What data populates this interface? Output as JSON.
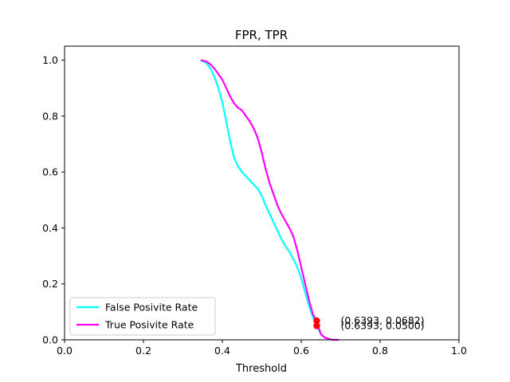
{
  "chart_data": {
    "type": "line",
    "title": "FPR, TPR",
    "xlabel": "Threshold",
    "ylabel": "",
    "xlim": [
      0.0,
      1.0
    ],
    "ylim": [
      0.0,
      1.05
    ],
    "xticks": [
      "0.0",
      "0.2",
      "0.4",
      "0.6",
      "0.8",
      "1.0"
    ],
    "yticks": [
      "0.0",
      "0.2",
      "0.4",
      "0.6",
      "0.8",
      "1.0"
    ],
    "grid": false,
    "legend_position": "lower-left",
    "series": [
      {
        "name": "False Posivite Rate",
        "color": "#00ffff",
        "points": [
          [
            0.345,
            1.0
          ],
          [
            0.36,
            0.99
          ],
          [
            0.37,
            0.97
          ],
          [
            0.38,
            0.94
          ],
          [
            0.39,
            0.9
          ],
          [
            0.4,
            0.85
          ],
          [
            0.41,
            0.78
          ],
          [
            0.42,
            0.71
          ],
          [
            0.43,
            0.65
          ],
          [
            0.44,
            0.62
          ],
          [
            0.45,
            0.6
          ],
          [
            0.46,
            0.585
          ],
          [
            0.47,
            0.57
          ],
          [
            0.48,
            0.555
          ],
          [
            0.49,
            0.54
          ],
          [
            0.5,
            0.515
          ],
          [
            0.51,
            0.48
          ],
          [
            0.52,
            0.45
          ],
          [
            0.53,
            0.42
          ],
          [
            0.54,
            0.39
          ],
          [
            0.55,
            0.36
          ],
          [
            0.56,
            0.335
          ],
          [
            0.57,
            0.315
          ],
          [
            0.58,
            0.29
          ],
          [
            0.59,
            0.26
          ],
          [
            0.6,
            0.22
          ],
          [
            0.61,
            0.17
          ],
          [
            0.62,
            0.12
          ],
          [
            0.63,
            0.08
          ],
          [
            0.6393,
            0.05
          ],
          [
            0.645,
            0.035
          ],
          [
            0.65,
            0.02
          ],
          [
            0.66,
            0.008
          ],
          [
            0.67,
            0.003
          ],
          [
            0.68,
            0.0
          ],
          [
            0.695,
            0.0
          ]
        ]
      },
      {
        "name": "True Posivite Rate",
        "color": "#ff00ff",
        "points": [
          [
            0.345,
            1.0
          ],
          [
            0.36,
            0.995
          ],
          [
            0.37,
            0.985
          ],
          [
            0.38,
            0.97
          ],
          [
            0.39,
            0.95
          ],
          [
            0.4,
            0.93
          ],
          [
            0.41,
            0.9
          ],
          [
            0.42,
            0.87
          ],
          [
            0.43,
            0.845
          ],
          [
            0.44,
            0.83
          ],
          [
            0.45,
            0.82
          ],
          [
            0.46,
            0.8
          ],
          [
            0.47,
            0.78
          ],
          [
            0.48,
            0.755
          ],
          [
            0.49,
            0.72
          ],
          [
            0.5,
            0.67
          ],
          [
            0.51,
            0.61
          ],
          [
            0.52,
            0.56
          ],
          [
            0.53,
            0.52
          ],
          [
            0.54,
            0.48
          ],
          [
            0.55,
            0.45
          ],
          [
            0.56,
            0.425
          ],
          [
            0.57,
            0.4
          ],
          [
            0.58,
            0.37
          ],
          [
            0.59,
            0.32
          ],
          [
            0.6,
            0.26
          ],
          [
            0.61,
            0.2
          ],
          [
            0.62,
            0.14
          ],
          [
            0.63,
            0.09
          ],
          [
            0.6393,
            0.0682
          ],
          [
            0.645,
            0.04
          ],
          [
            0.65,
            0.02
          ],
          [
            0.66,
            0.008
          ],
          [
            0.67,
            0.003
          ],
          [
            0.68,
            0.0
          ],
          [
            0.695,
            0.0
          ]
        ]
      }
    ],
    "markers": [
      {
        "x": 0.6393,
        "y": 0.0682,
        "color": "#ff0000"
      },
      {
        "x": 0.6393,
        "y": 0.05,
        "color": "#ff0000"
      }
    ],
    "annotations": [
      {
        "text": "(0.6393, 0.0682)",
        "x": 0.6393,
        "y": 0.0682
      },
      {
        "text": "(0.6393, 0.0500)",
        "x": 0.6393,
        "y": 0.05
      }
    ]
  }
}
